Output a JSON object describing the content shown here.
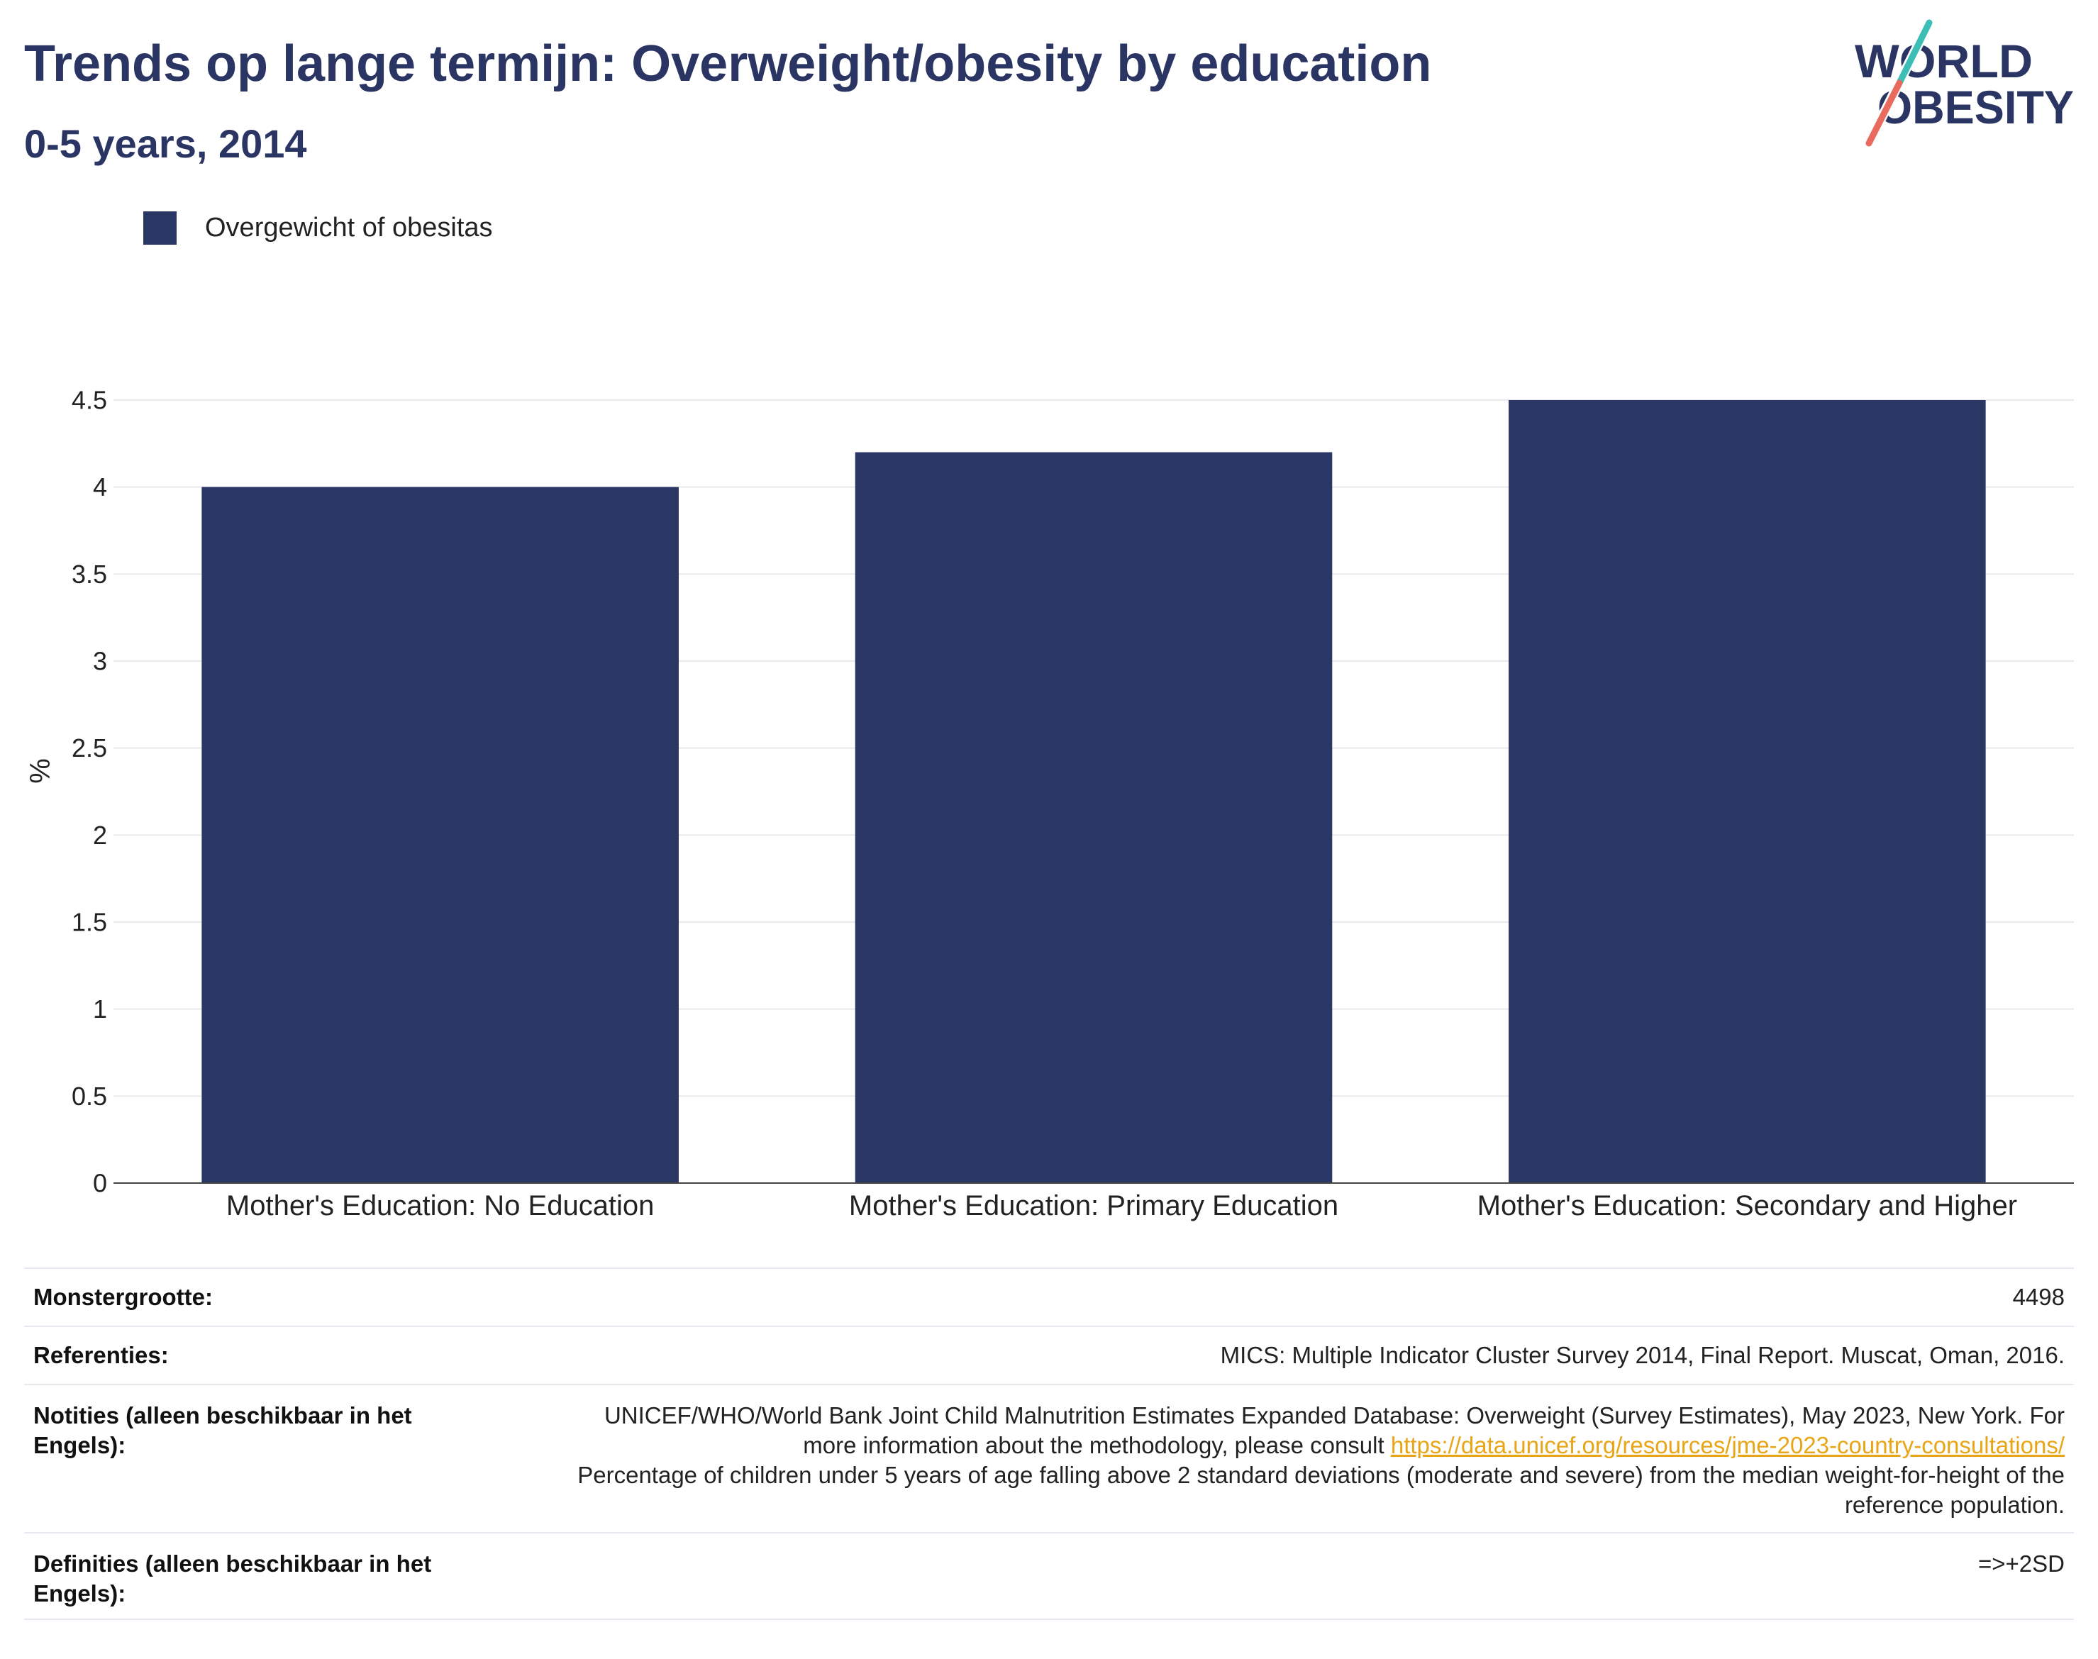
{
  "theme": {
    "navy": "#2a3563",
    "logo_teal": "#3cbeb6",
    "logo_coral": "#e96b5e",
    "link": "#e8a617",
    "gridline": "#e9e9ee",
    "axis": "#444444"
  },
  "logo": {
    "line1": "WORLD",
    "line2": "OBESITY"
  },
  "chart_data": {
    "type": "bar",
    "title": "Trends op lange termijn: Overweight/obesity by education",
    "subtitle": "0-5 years, 2014",
    "categories": [
      "Mother's Education: No Education",
      "Mother's Education: Primary Education",
      "Mother's Education: Secondary and Higher"
    ],
    "series": [
      {
        "name": "Overgewicht of obesitas",
        "color": "#2a3663",
        "values": [
          4.0,
          4.2,
          4.5
        ]
      }
    ],
    "ylabel": "%",
    "ylim": [
      0,
      4.5
    ],
    "yticks": [
      0,
      0.5,
      1,
      1.5,
      2,
      2.5,
      3,
      3.5,
      4,
      4.5
    ],
    "grid": true,
    "legend_position": "top-left"
  },
  "info_table": {
    "sample_size": {
      "label": "Monstergrootte:",
      "value": "4498"
    },
    "references": {
      "label": "Referenties:",
      "value": "MICS: Multiple Indicator Cluster Survey 2014, Final Report. Muscat, Oman, 2016."
    },
    "notes": {
      "label": "Notities (alleen beschikbaar in het Engels):",
      "text": "UNICEF/WHO/World Bank Joint Child Malnutrition Estimates Expanded Database: Overweight (Survey Estimates), May 2023, New York. For more information about the methodology, please consult",
      "link": "https://data.unicef.org/resources/jme-2023-country-consultations/",
      "text2": "Percentage of children under 5 years of age falling above 2 standard deviations (moderate and severe) from the median weight-for-height of the reference population."
    },
    "definitions": {
      "label": "Definities (alleen beschikbaar in het Engels):",
      "value": "=>+2SD"
    }
  }
}
